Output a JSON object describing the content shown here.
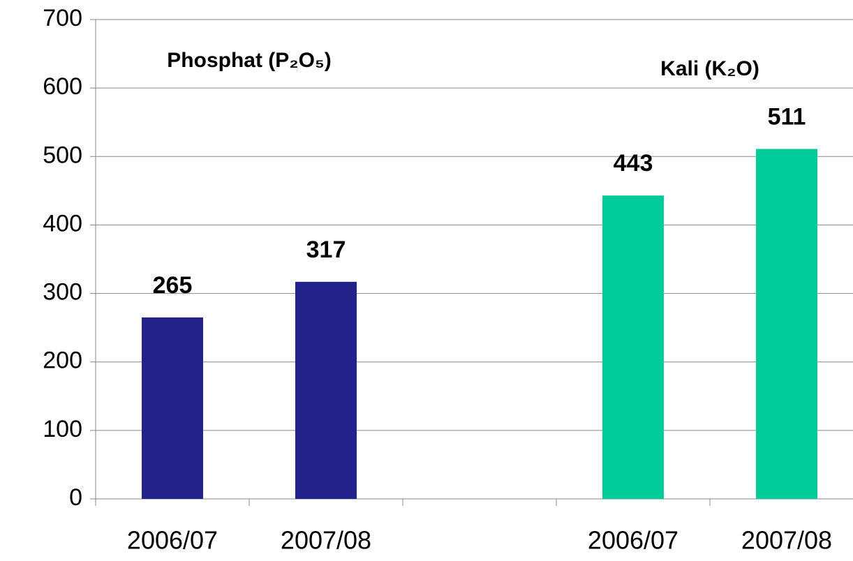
{
  "chart_data": {
    "type": "bar",
    "categories": [
      "2006/07",
      "2007/08",
      null,
      "2006/07",
      "2007/08"
    ],
    "series": [
      {
        "name": "Phosphat (P₂O₅)",
        "color": "#22228a",
        "values": [
          265,
          317,
          null,
          null,
          null
        ]
      },
      {
        "name": "Kali (K₂O)",
        "color": "#00cc99",
        "values": [
          null,
          null,
          null,
          443,
          511
        ]
      }
    ],
    "ylim": [
      0,
      700
    ],
    "yticks": [
      0,
      100,
      200,
      300,
      400,
      500,
      600,
      700
    ],
    "grid": true
  }
}
